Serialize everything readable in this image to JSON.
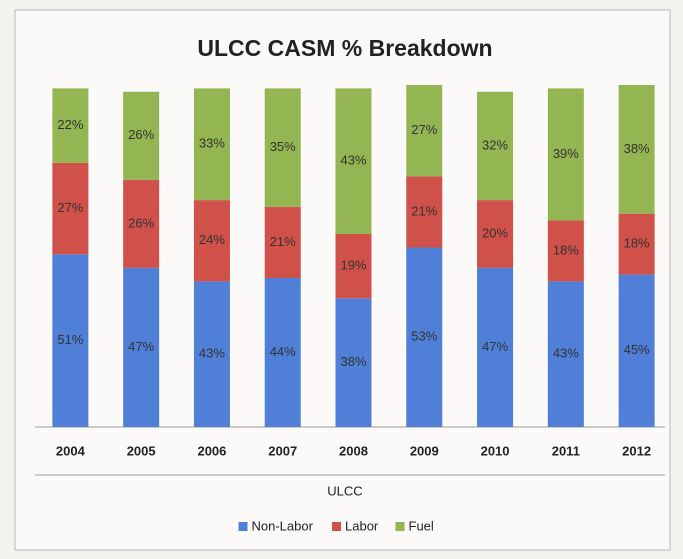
{
  "chart_data": {
    "type": "stacked_bar",
    "title": "ULCC CASM % Breakdown",
    "x_label": "ULCC",
    "categories": [
      "2004",
      "2005",
      "2006",
      "2007",
      "2008",
      "2009",
      "2010",
      "2011",
      "2012"
    ],
    "series": [
      {
        "name": "Non-Labor",
        "color": "#4f7fd6",
        "values": [
          51,
          47,
          43,
          44,
          38,
          53,
          47,
          43,
          45
        ],
        "value_labels": [
          "51%",
          "47%",
          "43%",
          "44%",
          "38%",
          "53%",
          "47%",
          "43%",
          "45%"
        ]
      },
      {
        "name": "Labor",
        "color": "#d0504a",
        "values": [
          27,
          26,
          24,
          21,
          19,
          21,
          20,
          18,
          18
        ],
        "value_labels": [
          "27%",
          "26%",
          "24%",
          "21%",
          "19%",
          "21%",
          "20%",
          "18%",
          "18%"
        ]
      },
      {
        "name": "Fuel",
        "color": "#93b552",
        "values": [
          22,
          26,
          33,
          35,
          43,
          27,
          32,
          39,
          38
        ],
        "value_labels": [
          "22%",
          "26%",
          "33%",
          "35%",
          "43%",
          "27%",
          "32%",
          "39%",
          "38%"
        ]
      }
    ],
    "legend": "bottom"
  }
}
